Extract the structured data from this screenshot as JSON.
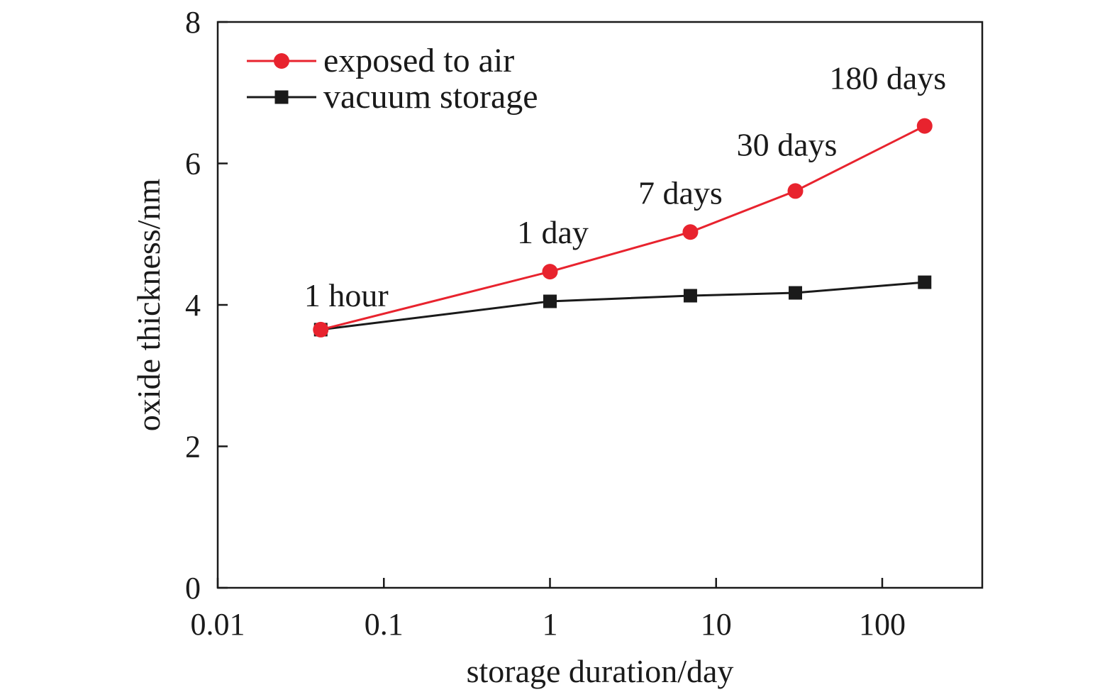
{
  "chart_data": {
    "type": "line",
    "x_scale": "log",
    "xlabel": "storage duration/day",
    "ylabel": "oxide thickness/nm",
    "xlim": [
      0.01,
      400
    ],
    "ylim": [
      0,
      8
    ],
    "x_ticks": [
      0.01,
      0.1,
      1,
      10,
      100
    ],
    "x_tick_labels": [
      "0.01",
      "0.1",
      "1",
      "10",
      "100"
    ],
    "y_ticks": [
      0,
      2,
      4,
      6,
      8
    ],
    "y_tick_labels": [
      "0",
      "2",
      "4",
      "6",
      "8"
    ],
    "grid": false,
    "legend_position": "top-left",
    "series": [
      {
        "name": "exposed to air",
        "color": "#e8232e",
        "marker": "circle",
        "x": [
          0.0417,
          1,
          7,
          30,
          180
        ],
        "y": [
          3.65,
          4.47,
          5.03,
          5.61,
          6.53
        ]
      },
      {
        "name": "vacuum storage",
        "color": "#1a1a1a",
        "marker": "square",
        "x": [
          0.0417,
          1,
          7,
          30,
          180
        ],
        "y": [
          3.65,
          4.05,
          4.13,
          4.17,
          4.32
        ]
      }
    ],
    "annotations": [
      {
        "text": "1 hour",
        "x": 0.0417,
        "y": 3.65
      },
      {
        "text": "1 day",
        "x": 1,
        "y": 4.47
      },
      {
        "text": "7 days",
        "x": 7,
        "y": 5.03
      },
      {
        "text": "30 days",
        "x": 30,
        "y": 5.61
      },
      {
        "text": "180 days",
        "x": 180,
        "y": 6.53
      }
    ]
  }
}
